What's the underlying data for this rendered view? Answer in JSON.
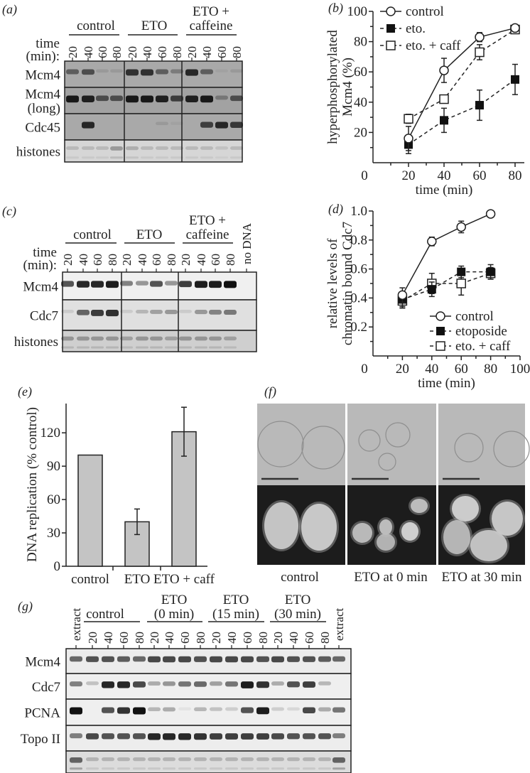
{
  "panel_a": {
    "label": "(a)",
    "groups": [
      "control",
      "ETO",
      "ETO +",
      "caffeine"
    ],
    "time_label": [
      "time",
      "(min):"
    ],
    "lanes": [
      "20",
      "40",
      "60",
      "80",
      "20",
      "40",
      "60",
      "80",
      "20",
      "40",
      "60",
      "80"
    ],
    "rows": [
      {
        "label": [
          "Mcm4"
        ],
        "bg": "#a9a9a9",
        "bands": [
          0.5,
          0.6,
          0.1,
          0.1,
          0.8,
          0.8,
          0.5,
          0.3,
          0.85,
          0.5,
          0.05,
          0.1
        ]
      },
      {
        "label": [
          "Mcm4",
          "(long)"
        ],
        "bg": "#a2a2a2",
        "bands": [
          0.95,
          0.9,
          0.6,
          0.6,
          0.95,
          0.95,
          0.9,
          0.7,
          0.9,
          0.95,
          0.3,
          0.6
        ]
      },
      {
        "label": [
          "Cdc45"
        ],
        "bg": "#a9a9a9",
        "bands": [
          0,
          0.85,
          0,
          0,
          0,
          0,
          0.1,
          0.05,
          0,
          0.7,
          0.85,
          0.75
        ]
      },
      {
        "label": [
          "histones"
        ],
        "bg": "#d6d6d6",
        "bands": [
          0.15,
          0.15,
          0.15,
          0.3,
          0.2,
          0.15,
          0.15,
          0.15,
          0.15,
          0.15,
          0.1,
          0.15
        ]
      }
    ]
  },
  "panel_c": {
    "label": "(c)",
    "groups": [
      "control",
      "ETO",
      "ETO +",
      "caffeine"
    ],
    "no_dna": "no DNA",
    "time_label": [
      "time",
      "(min):"
    ],
    "lanes": [
      "20",
      "40",
      "60",
      "80",
      "20",
      "40",
      "60",
      "80",
      "20",
      "40",
      "60",
      "80"
    ],
    "rows": [
      {
        "label": [
          "Mcm4"
        ],
        "bg": "#f0f0f0",
        "bands": [
          0.7,
          0.9,
          0.9,
          0.95,
          0.5,
          0.4,
          0.7,
          0.4,
          0.8,
          0.95,
          0.95,
          1,
          0
        ]
      },
      {
        "label": [
          "Cdc7"
        ],
        "bg": "#e0e0e0",
        "bands": [
          0.1,
          0.6,
          0.8,
          0.85,
          0.1,
          0.2,
          0.3,
          0.35,
          0.1,
          0.35,
          0.45,
          0.5,
          0
        ]
      },
      {
        "label": [
          "histones"
        ],
        "bg": "#cfcfcf",
        "bands": [
          0.3,
          0.3,
          0.3,
          0.3,
          0.25,
          0.3,
          0.3,
          0.25,
          0.3,
          0.3,
          0.3,
          0.25,
          0
        ]
      }
    ]
  },
  "panel_g": {
    "label": "(g)",
    "extract": "extract",
    "groups": [
      [
        "control"
      ],
      [
        "ETO",
        "(0 min)"
      ],
      [
        "ETO",
        "(15 min)"
      ],
      [
        "ETO",
        "(30 min)"
      ]
    ],
    "lanes": [
      "20",
      "40",
      "60",
      "80",
      "20",
      "40",
      "60",
      "80",
      "20",
      "40",
      "60",
      "80",
      "20",
      "40",
      "60",
      "80"
    ],
    "rows": [
      {
        "label": "Mcm4",
        "bg": "#ececec",
        "bands": [
          0.6,
          0.7,
          0.7,
          0.65,
          0.6,
          0.75,
          0.75,
          0.75,
          0.7,
          0.75,
          0.75,
          0.75,
          0.7,
          0.75,
          0.7,
          0.7,
          0.65,
          0.6
        ]
      },
      {
        "label": "Cdc7",
        "bg": "#efefef",
        "bands": [
          0.5,
          0.2,
          0.9,
          0.9,
          0.75,
          0.3,
          0.4,
          0.55,
          0.6,
          0.35,
          0.55,
          0.95,
          0.85,
          0.3,
          0.7,
          0.8,
          0.25,
          0
        ]
      },
      {
        "label": "PCNA",
        "bg": "#efefef",
        "bands": [
          1,
          0,
          0.7,
          0.85,
          1,
          0.25,
          0.3,
          0.05,
          0.25,
          0.2,
          0.15,
          0.7,
          0.95,
          0.15,
          0.1,
          0.75,
          0.3,
          0.55
        ]
      },
      {
        "label": "Topo II",
        "bg": "#ededed",
        "bands": [
          0.5,
          0.75,
          0.7,
          0.7,
          0.7,
          0.9,
          0.9,
          0.9,
          0.85,
          0.8,
          0.8,
          0.8,
          0.8,
          0.75,
          0.7,
          0.7,
          0.7,
          0.5
        ]
      },
      {
        "label": "",
        "bg": "#dcdcdc",
        "bands": [
          0.6,
          0.2,
          0.2,
          0.2,
          0.2,
          0.2,
          0.2,
          0.2,
          0.2,
          0.2,
          0.2,
          0.2,
          0.2,
          0.2,
          0.2,
          0.2,
          0.2,
          0.6
        ]
      }
    ]
  },
  "panel_f": {
    "label": "(f)",
    "captions": [
      "control",
      "ETO at 0 min",
      "ETO at 30 min"
    ]
  },
  "chart_data": [
    {
      "id": "b",
      "label": "(b)",
      "type": "line",
      "xlabel": "time (min)",
      "ylabel": [
        "hyperphosphorylated",
        "Mcm4 (%)"
      ],
      "xlim": [
        0,
        80
      ],
      "ylim": [
        0,
        100
      ],
      "xticks": [
        "0",
        "20",
        "40",
        "60",
        "80"
      ],
      "yticks": [
        "20",
        "40",
        "60",
        "80",
        "100"
      ],
      "x": [
        20,
        40,
        60,
        80
      ],
      "legend_position": "top-left",
      "series": [
        {
          "name": "control",
          "marker": "open-circle",
          "dash": false,
          "values": [
            16,
            61,
            83,
            89
          ],
          "errors": [
            8,
            8,
            3,
            1
          ]
        },
        {
          "name": "eto.",
          "marker": "filled-square",
          "dash": true,
          "values": [
            12,
            28,
            38,
            55
          ],
          "errors": [
            6,
            8,
            10,
            10
          ]
        },
        {
          "name": "eto. + caff",
          "marker": "open-square",
          "dash": true,
          "values": [
            29,
            42,
            73,
            88
          ],
          "errors": [
            3,
            2,
            5,
            1
          ]
        }
      ]
    },
    {
      "id": "d",
      "label": "(d)",
      "type": "line",
      "xlabel": "time (min)",
      "ylabel": [
        "relative levels of",
        "chromatin bound Cdc7"
      ],
      "xlim": [
        0,
        100
      ],
      "ylim": [
        0,
        1.0
      ],
      "xticks": [
        "0",
        "20",
        "40",
        "60",
        "80",
        "100"
      ],
      "yticks": [
        "0.2",
        "0.4",
        "0.6",
        "0.8",
        "1.0"
      ],
      "x": [
        20,
        40,
        60,
        80
      ],
      "legend_position": "bottom-right",
      "series": [
        {
          "name": "control",
          "marker": "open-circle",
          "dash": false,
          "values": [
            0.42,
            0.79,
            0.89,
            0.98
          ],
          "errors": [
            0.05,
            0.03,
            0.04,
            0.02
          ]
        },
        {
          "name": "etoposide",
          "marker": "filled-square",
          "dash": true,
          "values": [
            0.39,
            0.46,
            0.58,
            0.58
          ],
          "errors": [
            0.05,
            0.05,
            0.04,
            0.05
          ]
        },
        {
          "name": "eto. + caff",
          "marker": "open-square",
          "dash": true,
          "values": [
            0.38,
            0.5,
            0.5,
            0.57
          ],
          "errors": [
            0.05,
            0.07,
            0.08,
            0.04
          ]
        }
      ]
    },
    {
      "id": "e",
      "label": "(e)",
      "type": "bar",
      "ylabel": "DNA replication (% control)",
      "categories": [
        "control",
        "ETO",
        "ETO + caff"
      ],
      "values": [
        100,
        40,
        121
      ],
      "errors": [
        0.5,
        11.5,
        22
      ],
      "ylim": [
        0,
        145
      ],
      "yticks": [
        "0",
        "30",
        "60",
        "90",
        "120"
      ],
      "bar_color": "#c4c4c4"
    }
  ]
}
